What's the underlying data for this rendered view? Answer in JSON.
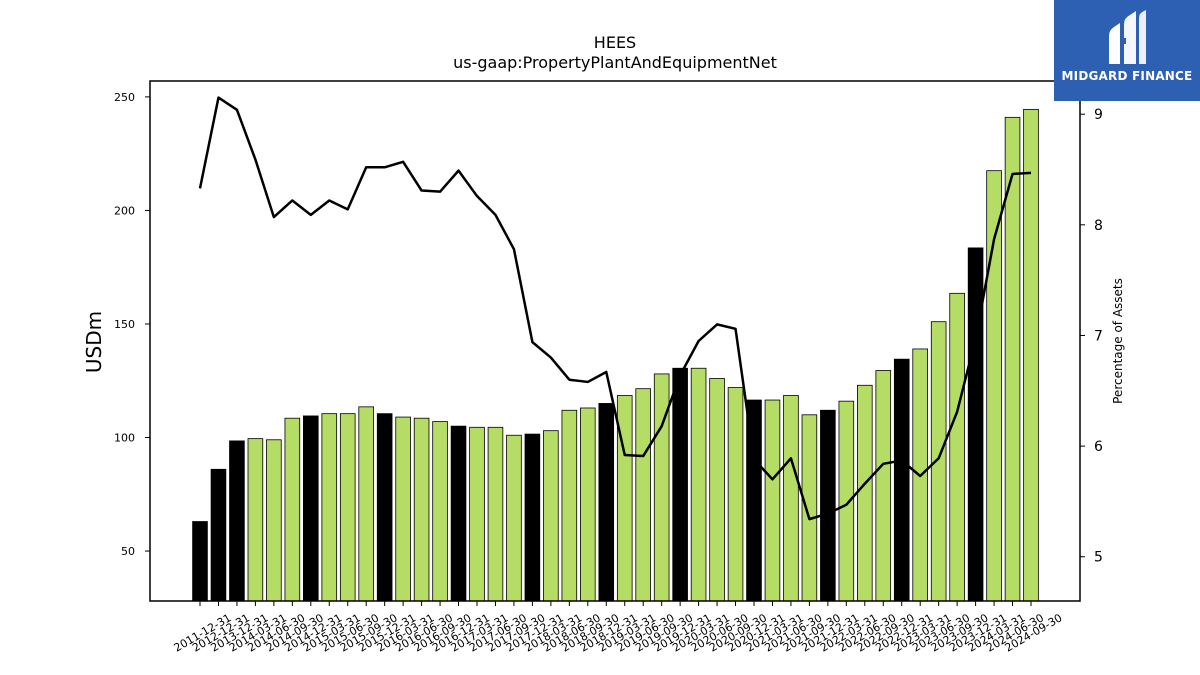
{
  "chart_data": {
    "type": "bar",
    "title": "HEES",
    "subtitle": "us-gaap:PropertyPlantAndEquipmentNet",
    "ylabel": "USDm",
    "y2label": "Percentage of Assets",
    "ylim": [
      28,
      257
    ],
    "y2lim": [
      4.6,
      9.3
    ],
    "yticks": [
      50,
      100,
      150,
      200,
      250
    ],
    "y2ticks": [
      5,
      6,
      7,
      8,
      9
    ],
    "categories": [
      "2011-12-31",
      "2012-12-31",
      "2013-12-31",
      "2014-03-31",
      "2014-06-30",
      "2014-09-30",
      "2014-12-31",
      "2015-03-31",
      "2015-06-30",
      "2015-09-30",
      "2015-12-31",
      "2016-03-31",
      "2016-06-30",
      "2016-09-30",
      "2016-12-31",
      "2017-03-31",
      "2017-06-30",
      "2017-09-30",
      "2017-12-31",
      "2018-03-31",
      "2018-06-30",
      "2018-09-30",
      "2018-12-31",
      "2019-03-31",
      "2019-06-30",
      "2019-09-30",
      "2019-12-31",
      "2020-03-31",
      "2020-06-30",
      "2020-09-30",
      "2020-12-31",
      "2021-03-31",
      "2021-06-30",
      "2021-09-30",
      "2021-12-31",
      "2022-03-31",
      "2022-06-30",
      "2022-09-30",
      "2022-12-31",
      "2023-03-31",
      "2023-06-30",
      "2023-09-30",
      "2023-12-31",
      "2024-03-31",
      "2024-06-30",
      "2024-09-30"
    ],
    "series": [
      {
        "values": [
          63,
          86,
          98.5,
          99.5,
          99,
          108.5,
          109.5,
          110.5,
          110.5,
          113.5,
          110.5,
          109,
          108.5,
          107,
          105,
          104.5,
          104.5,
          101,
          101.5,
          103,
          112,
          113,
          115,
          118.5,
          121.5,
          128,
          130.5,
          130.5,
          126,
          122,
          116.5,
          116.5,
          118.5,
          110,
          112,
          116,
          123,
          129.5,
          134.5,
          139,
          151,
          163.5,
          183.5,
          217.5,
          241,
          244.5
        ],
        "year_end": [
          true,
          true,
          true,
          false,
          false,
          false,
          true,
          false,
          false,
          false,
          true,
          false,
          false,
          false,
          true,
          false,
          false,
          false,
          true,
          false,
          false,
          false,
          true,
          false,
          false,
          false,
          true,
          false,
          false,
          false,
          true,
          false,
          false,
          false,
          true,
          false,
          false,
          false,
          true,
          false,
          false,
          false,
          true,
          false,
          false,
          false
        ]
      },
      {
        "axis": "right",
        "values": [
          8.33,
          9.15,
          9.04,
          8.59,
          8.07,
          8.22,
          8.09,
          8.22,
          8.14,
          8.52,
          8.52,
          8.57,
          8.31,
          8.3,
          8.49,
          8.26,
          8.09,
          7.78,
          6.94,
          6.8,
          6.6,
          6.58,
          6.67,
          5.92,
          5.91,
          6.18,
          6.64,
          6.95,
          7.1,
          7.06,
          5.88,
          5.7,
          5.89,
          5.34,
          5.39,
          5.47,
          5.66,
          5.84,
          5.87,
          5.73,
          5.89,
          6.31,
          6.97,
          7.87,
          8.46,
          8.47
        ]
      }
    ],
    "colors": {
      "bar": "#b5dc64",
      "bar_year_end": "#000000",
      "line": "#000000"
    },
    "grid": false
  },
  "logo": {
    "text": "MIDGARD FINANCE"
  }
}
